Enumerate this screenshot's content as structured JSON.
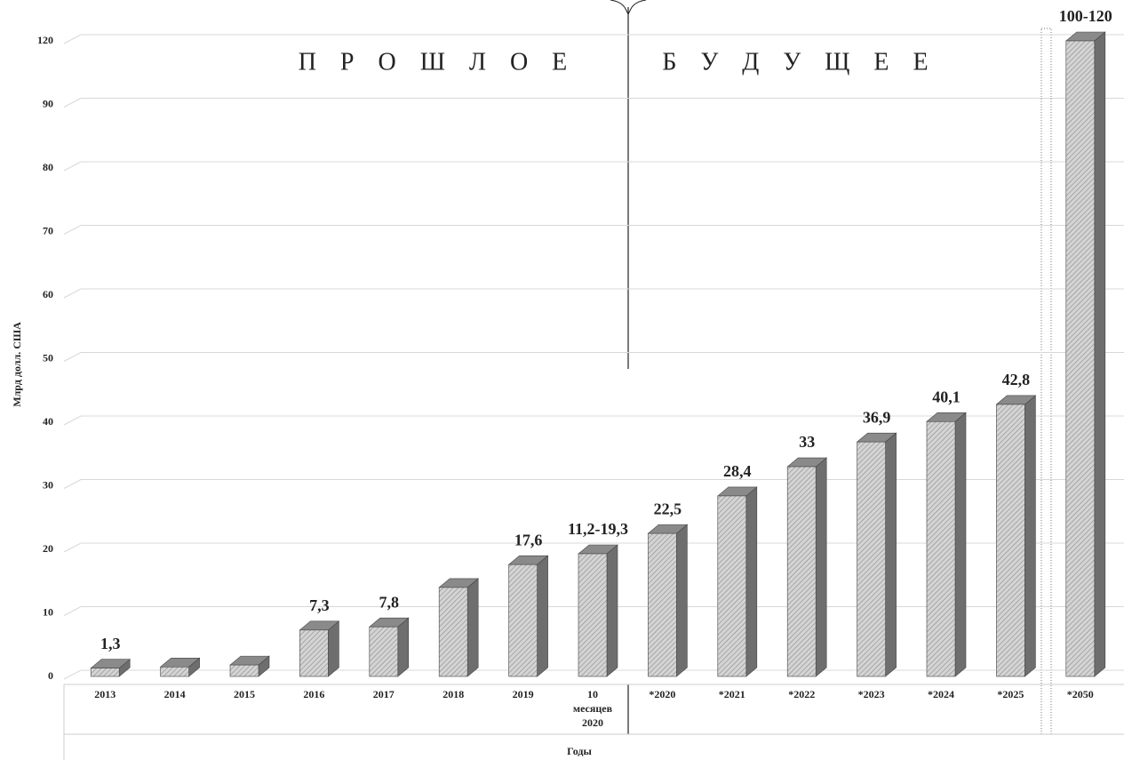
{
  "chart_data": {
    "type": "bar",
    "y_label": "Млрд долл. США",
    "x_label": "Годы",
    "annotations": [
      "П Р О Ш Л О Е",
      "Б У Д У Щ Е Е"
    ],
    "categories": [
      "2013",
      "2014",
      "2015",
      "2016",
      "2017",
      "2018",
      "2019",
      "10 месяцев 2020",
      "*2020",
      "*2021",
      "*2022",
      "*2023",
      "*2024",
      "*2025",
      "*2050"
    ],
    "values": [
      1.3,
      1.5,
      1.8,
      7.3,
      7.8,
      14,
      17.6,
      19.3,
      22.5,
      28.4,
      33,
      36.9,
      40.1,
      42.8,
      120
    ],
    "value_labels": [
      "1,3",
      null,
      null,
      "7,3",
      "7,8",
      null,
      "17,6",
      "11,2-19,3",
      "22,5",
      "28,4",
      "33",
      "36,9",
      "40,1",
      "42,8",
      "100-120"
    ],
    "color": "#c8c8c8",
    "ylim": [
      0,
      120
    ],
    "yticks": [
      0,
      10,
      20,
      30,
      40,
      50,
      60,
      70,
      80,
      90,
      120
    ],
    "grid": true
  }
}
